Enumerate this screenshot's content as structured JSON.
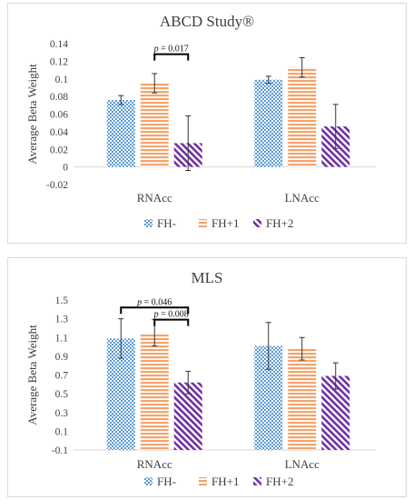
{
  "chart_data": [
    {
      "type": "bar",
      "title": "ABCD Study®",
      "ylabel": "Average Beta Weight",
      "xlabel": "",
      "categories": [
        "RNAcc",
        "LNAcc"
      ],
      "ylim": [
        -0.02,
        0.14
      ],
      "yticks": [
        "-0.02",
        "0",
        "0.02",
        "0.04",
        "0.06",
        "0.08",
        "0.1",
        "0.12",
        "0.14"
      ],
      "grid": false,
      "legend": "bottom",
      "series": [
        {
          "name": "FH-",
          "color": "#5b9bd5",
          "pattern": "checker",
          "values": [
            0.076,
            0.099
          ],
          "errors": [
            0.005,
            0.004
          ]
        },
        {
          "name": "FH+1",
          "color": "#f4a36b",
          "pattern": "hlines",
          "values": [
            0.095,
            0.113
          ],
          "errors": [
            0.011,
            0.011
          ]
        },
        {
          "name": "FH+2",
          "color": "#7030a0",
          "pattern": "diag",
          "values": [
            0.027,
            0.046
          ],
          "errors": [
            0.031,
            0.025
          ]
        }
      ],
      "annotations": [
        {
          "text": "p = 0.017",
          "from": [
            0,
            1
          ],
          "to": [
            0,
            2
          ],
          "level": 0.128
        }
      ]
    },
    {
      "type": "bar",
      "title": "MLS",
      "ylabel": "Average Beta Weight",
      "xlabel": "",
      "categories": [
        "RNAcc",
        "LNAcc"
      ],
      "ylim": [
        -0.1,
        1.5
      ],
      "yticks": [
        "-0.1",
        "0.1",
        "0.3",
        "0.5",
        "0.7",
        "0.9",
        "1.1",
        "1.3",
        "1.5"
      ],
      "grid": false,
      "legend": "bottom",
      "series": [
        {
          "name": "FH-",
          "color": "#5b9bd5",
          "pattern": "checker",
          "values": [
            1.09,
            1.01
          ],
          "errors": [
            0.21,
            0.25
          ]
        },
        {
          "name": "FH+1",
          "color": "#f4a36b",
          "pattern": "hlines",
          "values": [
            1.15,
            0.98
          ],
          "errors": [
            0.14,
            0.12
          ]
        },
        {
          "name": "FH+2",
          "color": "#7030a0",
          "pattern": "diag",
          "values": [
            0.62,
            0.69
          ],
          "errors": [
            0.12,
            0.14
          ]
        }
      ],
      "annotations": [
        {
          "text": "p = 0.046",
          "from": [
            0,
            0
          ],
          "to": [
            0,
            2
          ],
          "level": 1.42
        },
        {
          "text": "p = 0.008",
          "from": [
            0,
            1
          ],
          "to": [
            0,
            2
          ],
          "level": 1.29
        }
      ]
    }
  ]
}
